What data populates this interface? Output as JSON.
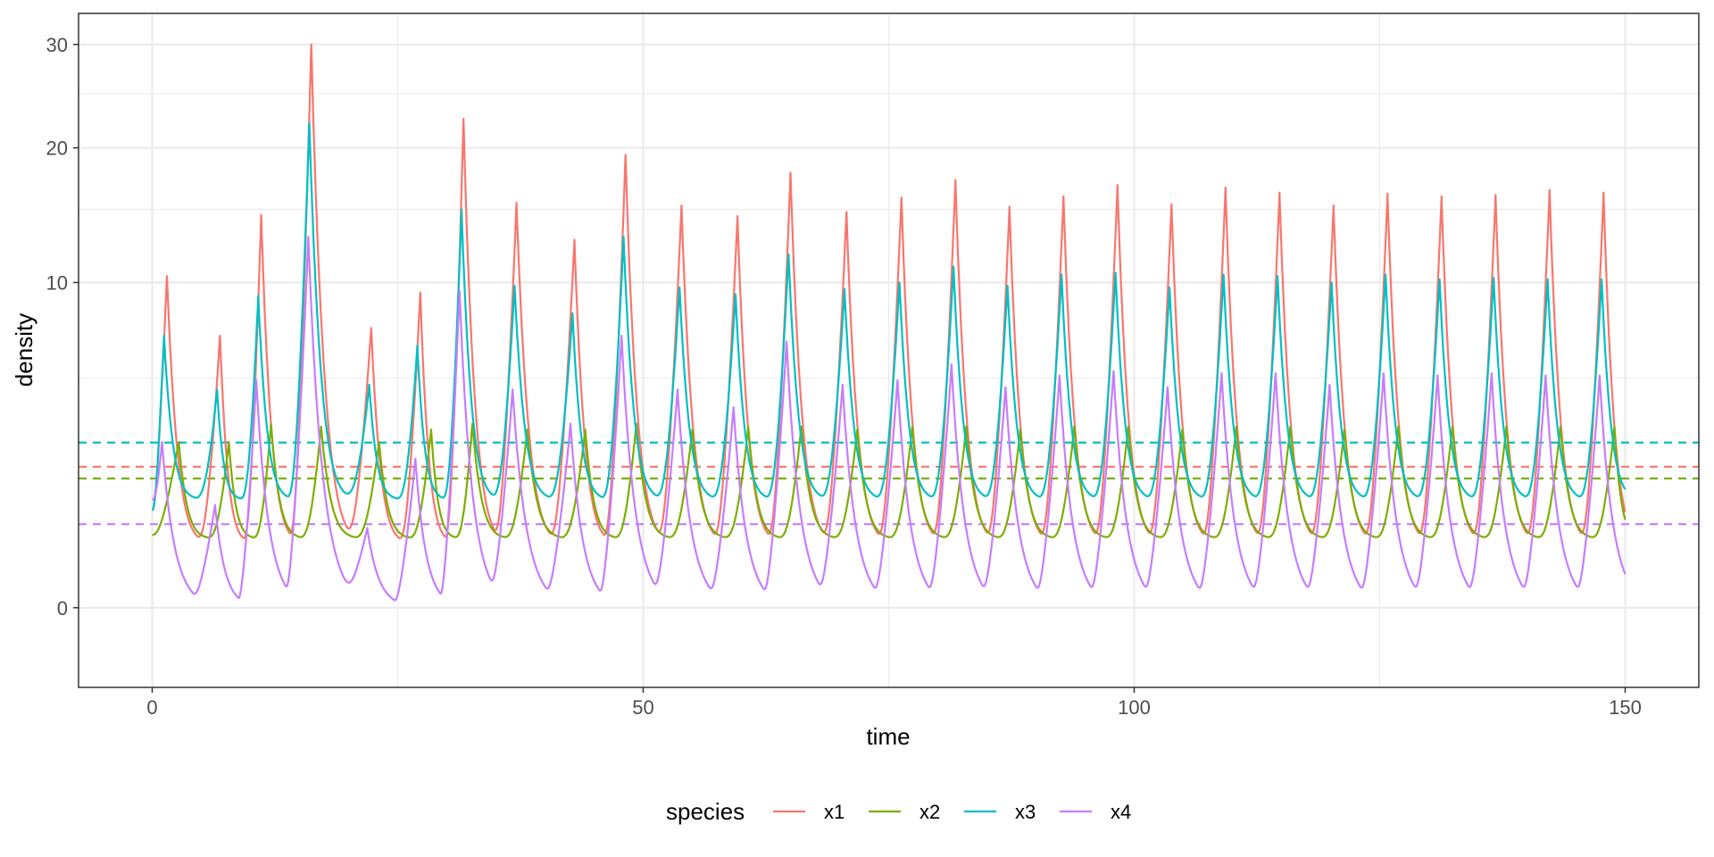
{
  "chart_data": {
    "type": "line",
    "title": "",
    "xlabel": "time",
    "ylabel": "density",
    "xlim": [
      -7.5,
      157.5
    ],
    "x_ticks": [
      0,
      50,
      100,
      150
    ],
    "x_tick_labels": [
      "0",
      "50",
      "100",
      "150"
    ],
    "y_ticks": [
      0,
      10,
      20,
      30
    ],
    "y_tick_labels": [
      "0",
      "10",
      "20",
      "30"
    ],
    "y_scale": "sqrt",
    "ylim": [
      -0.6,
      33.4
    ],
    "grid": true,
    "legend": {
      "title": "species",
      "position": "bottom"
    },
    "series": [
      {
        "name": "x1",
        "color": "#F8766D",
        "equilibrium": 1.88,
        "baseline": 0.4,
        "initial": 0.9,
        "peaks": [
          [
            1.5,
            10.4
          ],
          [
            6.9,
            7.0
          ],
          [
            11.1,
            14.6
          ],
          [
            16.2,
            30.0
          ],
          [
            22.3,
            7.4
          ],
          [
            27.3,
            9.4
          ],
          [
            31.7,
            22.6
          ],
          [
            37.1,
            15.5
          ],
          [
            43.0,
            12.8
          ],
          [
            48.2,
            19.4
          ],
          [
            53.9,
            15.3
          ],
          [
            59.6,
            14.5
          ],
          [
            65.0,
            17.9
          ],
          [
            70.7,
            14.8
          ],
          [
            76.3,
            15.9
          ],
          [
            81.8,
            17.3
          ],
          [
            87.3,
            15.2
          ],
          [
            92.8,
            16.0
          ],
          [
            98.3,
            16.9
          ],
          [
            103.8,
            15.4
          ],
          [
            109.3,
            16.7
          ],
          [
            114.8,
            16.3
          ],
          [
            120.3,
            15.3
          ],
          [
            125.8,
            16.2
          ],
          [
            131.3,
            16.0
          ],
          [
            136.8,
            16.1
          ],
          [
            142.3,
            16.5
          ],
          [
            147.8,
            16.3
          ]
        ],
        "end": 0.35
      },
      {
        "name": "x2",
        "color": "#7CAE00",
        "equilibrium": 1.58,
        "baseline": 0.45,
        "initial": 0.5,
        "peaks": [
          [
            2.7,
            2.6
          ],
          [
            7.8,
            2.6
          ],
          [
            12.1,
            3.2
          ],
          [
            17.2,
            3.1
          ],
          [
            23.1,
            2.6
          ],
          [
            28.4,
            3.0
          ],
          [
            32.6,
            3.2
          ],
          [
            38.2,
            3.0
          ],
          [
            44.1,
            3.0
          ],
          [
            49.3,
            3.2
          ],
          [
            55.0,
            3.0
          ],
          [
            60.7,
            3.1
          ],
          [
            66.1,
            3.1
          ],
          [
            71.8,
            3.0
          ],
          [
            77.4,
            3.1
          ],
          [
            82.9,
            3.1
          ],
          [
            88.4,
            3.0
          ],
          [
            93.9,
            3.1
          ],
          [
            99.4,
            3.1
          ],
          [
            104.9,
            3.0
          ],
          [
            110.4,
            3.1
          ],
          [
            115.9,
            3.1
          ],
          [
            121.4,
            3.0
          ],
          [
            126.9,
            3.1
          ],
          [
            132.4,
            3.1
          ],
          [
            137.9,
            3.1
          ],
          [
            143.4,
            3.1
          ],
          [
            148.9,
            3.1
          ]
        ],
        "end": 2.6
      },
      {
        "name": "x3",
        "color": "#00BFC4",
        "equilibrium": 2.58,
        "baseline": 1.1,
        "initial": 0.9,
        "peaks": [
          [
            1.2,
            7.0
          ],
          [
            6.6,
            4.5
          ],
          [
            10.8,
            9.2
          ],
          [
            16.0,
            22.2
          ],
          [
            22.1,
            4.7
          ],
          [
            27.0,
            6.5
          ],
          [
            31.5,
            15.0
          ],
          [
            36.9,
            9.8
          ],
          [
            42.8,
            8.2
          ],
          [
            48.0,
            13.0
          ],
          [
            53.7,
            9.7
          ],
          [
            59.4,
            9.3
          ],
          [
            64.8,
            11.8
          ],
          [
            70.5,
            9.6
          ],
          [
            76.1,
            10.0
          ],
          [
            81.6,
            11.0
          ],
          [
            87.1,
            9.8
          ],
          [
            92.6,
            10.5
          ],
          [
            98.1,
            10.6
          ],
          [
            103.6,
            9.7
          ],
          [
            109.1,
            10.5
          ],
          [
            114.6,
            10.4
          ],
          [
            120.1,
            10.0
          ],
          [
            125.6,
            10.5
          ],
          [
            131.1,
            10.2
          ],
          [
            136.6,
            10.3
          ],
          [
            142.1,
            10.2
          ],
          [
            147.6,
            10.2
          ]
        ],
        "end": 1.2
      },
      {
        "name": "x4",
        "color": "#C77CFF",
        "equilibrium": 0.66,
        "baseline": 0.0,
        "initial": 1.1,
        "peaks": [
          [
            1.0,
            2.6
          ],
          [
            6.4,
            1.0
          ],
          [
            10.6,
            4.9
          ],
          [
            15.9,
            13.0
          ],
          [
            21.9,
            0.6
          ],
          [
            26.8,
            2.1
          ],
          [
            31.3,
            9.5
          ],
          [
            36.7,
            4.5
          ],
          [
            42.6,
            3.2
          ],
          [
            47.8,
            7.0
          ],
          [
            53.5,
            4.5
          ],
          [
            59.2,
            3.8
          ],
          [
            64.6,
            6.7
          ],
          [
            70.3,
            4.7
          ],
          [
            75.9,
            4.9
          ],
          [
            81.4,
            5.6
          ],
          [
            86.9,
            4.6
          ],
          [
            92.4,
            5.1
          ],
          [
            97.9,
            5.3
          ],
          [
            103.4,
            4.6
          ],
          [
            108.9,
            5.2
          ],
          [
            114.4,
            5.2
          ],
          [
            119.9,
            4.7
          ],
          [
            125.4,
            5.2
          ],
          [
            130.9,
            5.1
          ],
          [
            136.4,
            5.2
          ],
          [
            141.9,
            5.1
          ],
          [
            147.4,
            5.1
          ]
        ],
        "end": 0.02
      }
    ]
  }
}
